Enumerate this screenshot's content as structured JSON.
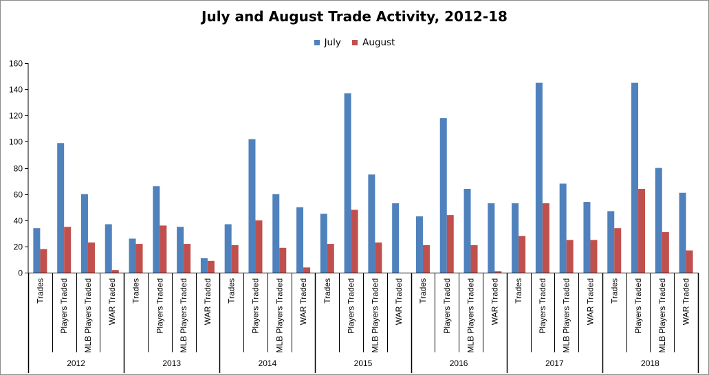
{
  "chart_data": {
    "type": "bar",
    "title": "July and August Trade Activity, 2012-18",
    "xlabel": "",
    "ylabel": "",
    "ylim": [
      0,
      160
    ],
    "yticks": [
      0,
      20,
      40,
      60,
      80,
      100,
      120,
      140,
      160
    ],
    "grid": false,
    "legend_position": "top-center",
    "groups": [
      "2012",
      "2013",
      "2014",
      "2015",
      "2016",
      "2017",
      "2018"
    ],
    "subcategories": [
      "Trades",
      "Players Traded",
      "MLB Players Traded",
      "WAR Traded"
    ],
    "series": [
      {
        "name": "July",
        "color": "#4f81bd",
        "values": [
          34,
          99,
          60,
          37,
          26,
          66,
          35,
          11,
          37,
          102,
          60,
          50,
          45,
          137,
          75,
          53,
          43,
          118,
          64,
          53,
          53,
          145,
          68,
          54,
          47,
          145,
          80,
          61
        ]
      },
      {
        "name": "August",
        "color": "#c0504d",
        "values": [
          18,
          35,
          23,
          2,
          22,
          36,
          22,
          9,
          21,
          40,
          19,
          4,
          22,
          48,
          23,
          0,
          21,
          44,
          21,
          1,
          28,
          53,
          25,
          25,
          34,
          64,
          31,
          17
        ]
      }
    ]
  }
}
